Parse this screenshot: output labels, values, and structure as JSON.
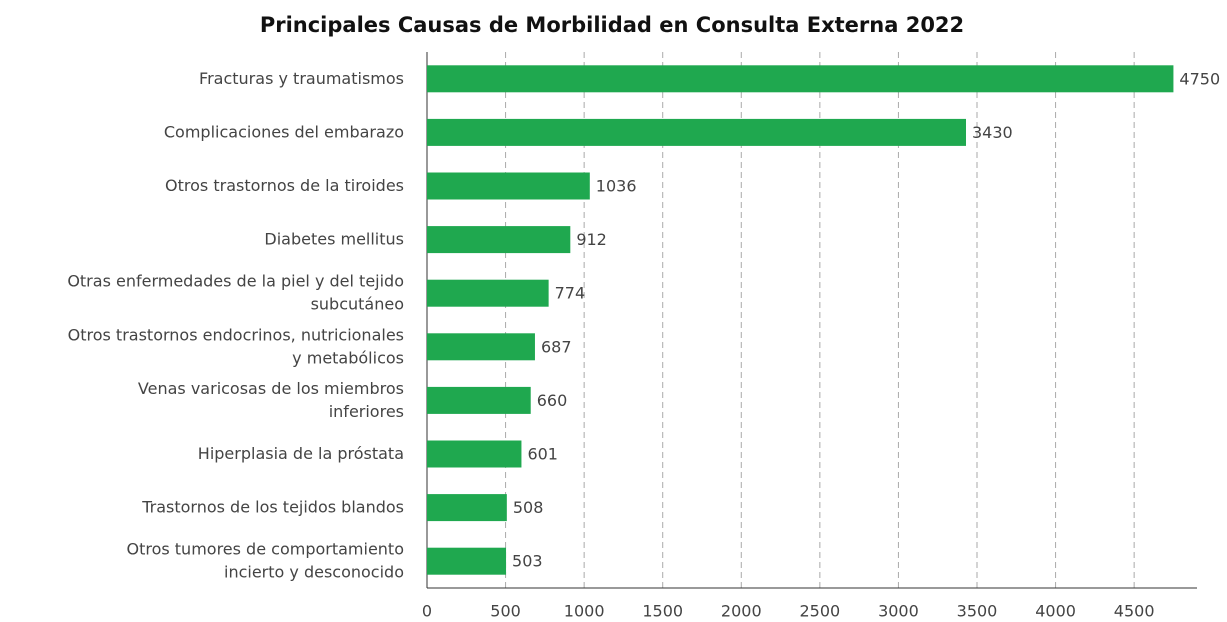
{
  "chart_data": {
    "type": "bar",
    "orientation": "horizontal",
    "title": "Principales Causas de Morbilidad en Consulta Externa 2022",
    "categories": [
      "Fracturas y traumatismos",
      "Complicaciones del embarazo",
      "Otros trastornos de la tiroides",
      "Diabetes mellitus",
      "Otras enfermedades de la piel y del tejido\nsubcutáneo",
      "Otros trastornos endocrinos, nutricionales\ny metabólicos",
      "Venas varicosas de los miembros\ninferiores",
      "Hiperplasia de la próstata",
      "Trastornos de los tejidos blandos",
      "Otros tumores de comportamiento\nincierto y desconocido"
    ],
    "values": [
      4750,
      3430,
      1036,
      912,
      774,
      687,
      660,
      601,
      508,
      503
    ],
    "color": "#1fa84f",
    "xlim": [
      0,
      4900
    ],
    "xticks": [
      0,
      500,
      1000,
      1500,
      2000,
      2500,
      3000,
      3500,
      4000,
      4500
    ],
    "grid": true
  }
}
